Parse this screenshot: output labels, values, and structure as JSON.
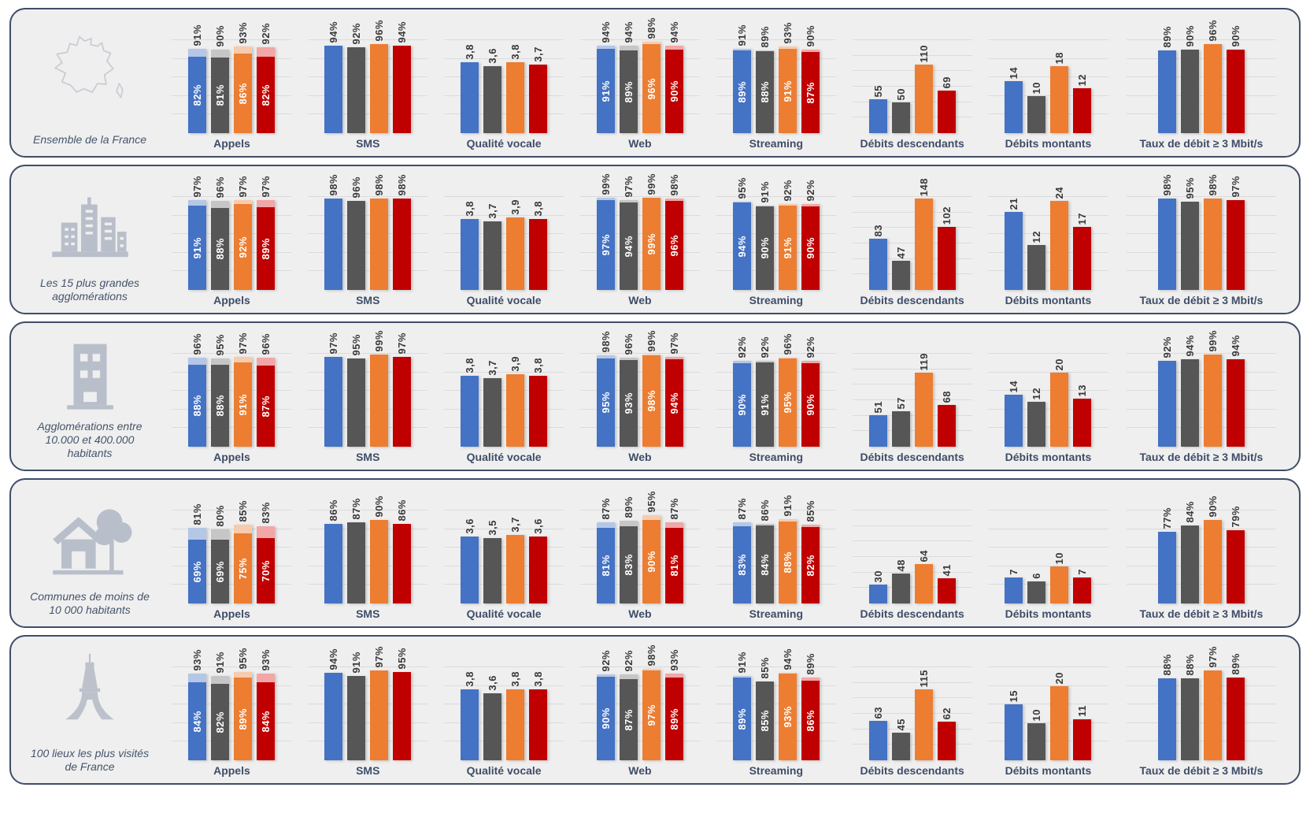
{
  "colors": {
    "series_solid": [
      "#4472C4",
      "#565656",
      "#ED7D31",
      "#C00000"
    ],
    "series_light": [
      "#B4C7E7",
      "#C6C6C6",
      "#F8CBAD",
      "#F2A6A6"
    ],
    "panel_border": "#3F4D68",
    "panel_background": "#EFEFEF",
    "title_text": "#3F4D68",
    "bar_label_dark": "#3A3A3A",
    "bar_label_light": "#FFFFFF",
    "gridline": "#DBDBDB",
    "icon_gray": "#B9BFCA"
  },
  "chart_data": {
    "type": "bar",
    "note_layout": "5 region rows x 8 metric charts, 4 bars per chart (operators blue/gray/orange/red); stacked charts show light tint up to outer value and solid color up to inner value",
    "columns": [
      {
        "key": "appels",
        "label": "Appels",
        "type": "stacked",
        "max": 100,
        "gridlines": 5
      },
      {
        "key": "sms",
        "label": "SMS",
        "type": "simple",
        "max": 100,
        "gridlines": 5
      },
      {
        "key": "qualite_vocale",
        "label": "Qualité vocale",
        "type": "simple",
        "max": 5,
        "gridlines": 5
      },
      {
        "key": "web",
        "label": "Web",
        "type": "stacked",
        "max": 100,
        "gridlines": 5
      },
      {
        "key": "streaming",
        "label": "Streaming",
        "type": "stacked",
        "max": 100,
        "gridlines": 5
      },
      {
        "key": "debits_descendants",
        "label": "Débits descendants",
        "type": "simple",
        "max": 150,
        "gridlines": 6
      },
      {
        "key": "debits_montants",
        "label": "Débits montants",
        "type": "simple",
        "max": 25,
        "gridlines": 5
      },
      {
        "key": "taux_debit",
        "label": "Taux de débit ≥ 3 Mbit/s",
        "type": "simple",
        "max": 100,
        "gridlines": 5
      }
    ],
    "rows": [
      {
        "label": "Ensemble de la France",
        "icon": "france-map-icon",
        "charts": {
          "appels": {
            "outer": [
              "91%",
              "90%",
              "93%",
              "92%"
            ],
            "inner": [
              "82%",
              "81%",
              "86%",
              "82%"
            ]
          },
          "sms": {
            "values": [
              "94%",
              "92%",
              "96%",
              "94%"
            ]
          },
          "qualite_vocale": {
            "values": [
              "3,8",
              "3,6",
              "3,8",
              "3,7"
            ]
          },
          "web": {
            "outer": [
              "94%",
              "94%",
              "98%",
              "94%"
            ],
            "inner": [
              "91%",
              "89%",
              "96%",
              "90%"
            ]
          },
          "streaming": {
            "outer": [
              "91%",
              "89%",
              "93%",
              "90%"
            ],
            "inner": [
              "89%",
              "88%",
              "91%",
              "87%"
            ]
          },
          "debits_descendants": {
            "values": [
              "55",
              "50",
              "110",
              "69"
            ]
          },
          "debits_montants": {
            "values": [
              "14",
              "10",
              "18",
              "12"
            ]
          },
          "taux_debit": {
            "values": [
              "89%",
              "90%",
              "96%",
              "90%"
            ]
          }
        }
      },
      {
        "label": "Les 15 plus grandes agglomérations",
        "icon": "city-icon",
        "charts": {
          "appels": {
            "outer": [
              "97%",
              "96%",
              "97%",
              "97%"
            ],
            "inner": [
              "91%",
              "88%",
              "92%",
              "89%"
            ]
          },
          "sms": {
            "values": [
              "98%",
              "96%",
              "98%",
              "98%"
            ]
          },
          "qualite_vocale": {
            "values": [
              "3,8",
              "3,7",
              "3,9",
              "3,8"
            ]
          },
          "web": {
            "outer": [
              "99%",
              "97%",
              "99%",
              "98%"
            ],
            "inner": [
              "97%",
              "94%",
              "99%",
              "96%"
            ]
          },
          "streaming": {
            "outer": [
              "95%",
              "91%",
              "92%",
              "92%"
            ],
            "inner": [
              "94%",
              "90%",
              "91%",
              "90%"
            ]
          },
          "debits_descendants": {
            "values": [
              "83",
              "47",
              "148",
              "102"
            ]
          },
          "debits_montants": {
            "values": [
              "21",
              "12",
              "24",
              "17"
            ]
          },
          "taux_debit": {
            "values": [
              "98%",
              "95%",
              "98%",
              "97%"
            ]
          }
        }
      },
      {
        "label": "Agglomérations entre 10.000 et 400.000 habitants",
        "icon": "building-icon",
        "charts": {
          "appels": {
            "outer": [
              "96%",
              "95%",
              "97%",
              "96%"
            ],
            "inner": [
              "88%",
              "88%",
              "91%",
              "87%"
            ]
          },
          "sms": {
            "values": [
              "97%",
              "95%",
              "99%",
              "97%"
            ]
          },
          "qualite_vocale": {
            "values": [
              "3,8",
              "3,7",
              "3,9",
              "3,8"
            ]
          },
          "web": {
            "outer": [
              "98%",
              "96%",
              "99%",
              "97%"
            ],
            "inner": [
              "95%",
              "93%",
              "98%",
              "94%"
            ]
          },
          "streaming": {
            "outer": [
              "92%",
              "92%",
              "96%",
              "92%"
            ],
            "inner": [
              "90%",
              "91%",
              "95%",
              "90%"
            ]
          },
          "debits_descendants": {
            "values": [
              "51",
              "57",
              "119",
              "68"
            ]
          },
          "debits_montants": {
            "values": [
              "14",
              "12",
              "20",
              "13"
            ]
          },
          "taux_debit": {
            "values": [
              "92%",
              "94%",
              "99%",
              "94%"
            ]
          }
        }
      },
      {
        "label": "Communes de moins de 10 000 habitants",
        "icon": "house-tree-icon",
        "charts": {
          "appels": {
            "outer": [
              "81%",
              "80%",
              "85%",
              "83%"
            ],
            "inner": [
              "69%",
              "69%",
              "75%",
              "70%"
            ]
          },
          "sms": {
            "values": [
              "86%",
              "87%",
              "90%",
              "86%"
            ]
          },
          "qualite_vocale": {
            "values": [
              "3,6",
              "3,5",
              "3,7",
              "3,6"
            ]
          },
          "web": {
            "outer": [
              "87%",
              "89%",
              "95%",
              "87%"
            ],
            "inner": [
              "81%",
              "83%",
              "90%",
              "81%"
            ]
          },
          "streaming": {
            "outer": [
              "87%",
              "86%",
              "91%",
              "85%"
            ],
            "inner": [
              "83%",
              "84%",
              "88%",
              "82%"
            ]
          },
          "debits_descendants": {
            "values": [
              "30",
              "48",
              "64",
              "41"
            ]
          },
          "debits_montants": {
            "values": [
              "7",
              "6",
              "10",
              "7"
            ]
          },
          "taux_debit": {
            "values": [
              "77%",
              "84%",
              "90%",
              "79%"
            ]
          }
        }
      },
      {
        "label": "100 lieux les plus visités de France",
        "icon": "eiffel-tower-icon",
        "charts": {
          "appels": {
            "outer": [
              "93%",
              "91%",
              "95%",
              "93%"
            ],
            "inner": [
              "84%",
              "82%",
              "89%",
              "84%"
            ]
          },
          "sms": {
            "values": [
              "94%",
              "91%",
              "97%",
              "95%"
            ]
          },
          "qualite_vocale": {
            "values": [
              "3,8",
              "3,6",
              "3,8",
              "3,8"
            ]
          },
          "web": {
            "outer": [
              "92%",
              "92%",
              "98%",
              "93%"
            ],
            "inner": [
              "90%",
              "87%",
              "97%",
              "89%"
            ]
          },
          "streaming": {
            "outer": [
              "91%",
              "85%",
              "94%",
              "89%"
            ],
            "inner": [
              "89%",
              "85%",
              "93%",
              "86%"
            ]
          },
          "debits_descendants": {
            "values": [
              "63",
              "45",
              "115",
              "62"
            ]
          },
          "debits_montants": {
            "values": [
              "15",
              "10",
              "20",
              "11"
            ]
          },
          "taux_debit": {
            "values": [
              "88%",
              "88%",
              "97%",
              "89%"
            ]
          }
        }
      }
    ]
  }
}
